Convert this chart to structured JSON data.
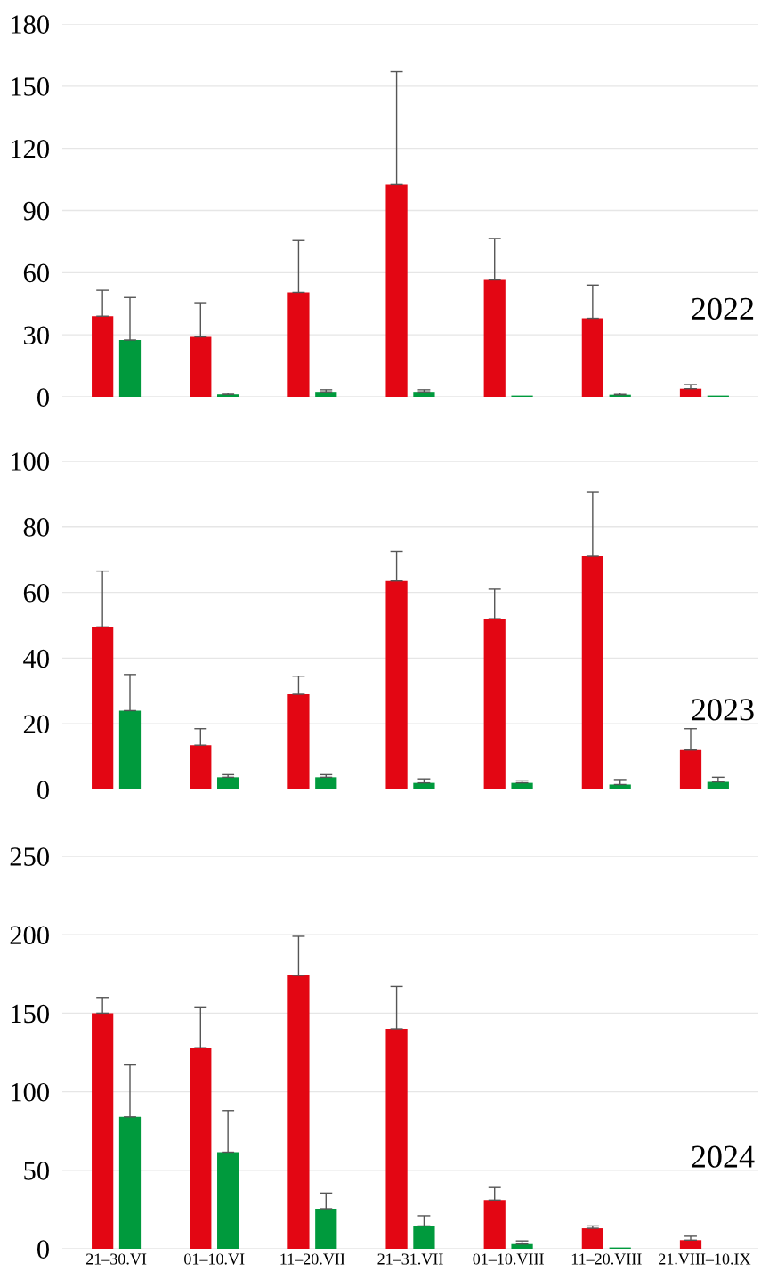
{
  "chart_data": [
    {
      "type": "bar",
      "categories": [
        null,
        null,
        null,
        null,
        null,
        null,
        null
      ],
      "tick_labels": "y",
      "ylim": [
        0,
        180
      ],
      "yticks": [
        0,
        30,
        60,
        90,
        120,
        150,
        180
      ],
      "grid": "y",
      "annotations": [
        "2022"
      ],
      "series": [
        {
          "color": "#e30613",
          "values": [
            39,
            29,
            50.5,
            102.5,
            56.5,
            38,
            4
          ],
          "errors": [
            [
              39,
              51.5
            ],
            [
              29,
              45.5
            ],
            [
              50.5,
              75.5
            ],
            [
              102.5,
              157
            ],
            [
              56.5,
              76.5
            ],
            [
              38,
              54
            ],
            [
              4,
              6
            ]
          ]
        },
        {
          "color": "#009a3d",
          "values": [
            27.5,
            1.2,
            2.5,
            2.5,
            0.6,
            1,
            0.6
          ],
          "errors": [
            [
              27.5,
              48
            ],
            [
              1.2,
              1.8
            ],
            [
              2.5,
              3.5
            ],
            [
              2.5,
              3.5
            ],
            null,
            [
              1,
              1.8
            ],
            null
          ]
        }
      ]
    },
    {
      "type": "bar",
      "categories": [
        null,
        null,
        null,
        null,
        null,
        null,
        null
      ],
      "tick_labels": "y",
      "ylim": [
        0,
        100
      ],
      "yticks": [
        0,
        20,
        40,
        60,
        80,
        100
      ],
      "grid": "y",
      "annotations": [
        "2023"
      ],
      "series": [
        {
          "color": "#e30613",
          "values": [
            49.5,
            13.5,
            29,
            63.5,
            52,
            71,
            12
          ],
          "errors": [
            [
              49.5,
              66.5
            ],
            [
              13.5,
              18.5
            ],
            [
              29,
              34.5
            ],
            [
              63.5,
              72.5
            ],
            [
              52,
              61
            ],
            [
              71,
              90.5
            ],
            [
              12,
              18.5
            ]
          ]
        },
        {
          "color": "#009a3d",
          "values": [
            24,
            3.7,
            3.7,
            2,
            2,
            1.5,
            2.3
          ],
          "errors": [
            [
              24,
              35
            ],
            [
              3.7,
              4.5
            ],
            [
              3.7,
              4.5
            ],
            [
              2,
              3.2
            ],
            [
              2,
              2.6
            ],
            [
              1.5,
              3
            ],
            [
              2.3,
              3.7
            ]
          ]
        }
      ]
    },
    {
      "type": "bar",
      "categories": [
        "21–30.VI",
        "01–10.VI",
        "11–20.VII",
        "21–31.VII",
        "01–10.VIII",
        "11–20.VIII",
        "21.VIII–10.IX"
      ],
      "ylim": [
        0,
        250
      ],
      "yticks": [
        0,
        50,
        100,
        150,
        200,
        250
      ],
      "grid": "y",
      "annotations": [
        "2024"
      ],
      "series": [
        {
          "color": "#e30613",
          "values": [
            150,
            128,
            174,
            140,
            31,
            13,
            5.5
          ],
          "errors": [
            [
              150,
              160
            ],
            [
              128,
              154
            ],
            [
              174,
              199
            ],
            [
              140,
              167
            ],
            [
              31,
              39
            ],
            [
              13,
              14.5
            ],
            [
              5.5,
              8
            ]
          ]
        },
        {
          "color": "#009a3d",
          "values": [
            84,
            61.5,
            25.5,
            14.5,
            3,
            0.8,
            null
          ],
          "errors": [
            [
              84,
              117
            ],
            [
              61.5,
              88
            ],
            [
              25.5,
              35.5
            ],
            [
              14.5,
              21
            ],
            [
              3,
              5
            ],
            null,
            null
          ]
        }
      ]
    }
  ]
}
